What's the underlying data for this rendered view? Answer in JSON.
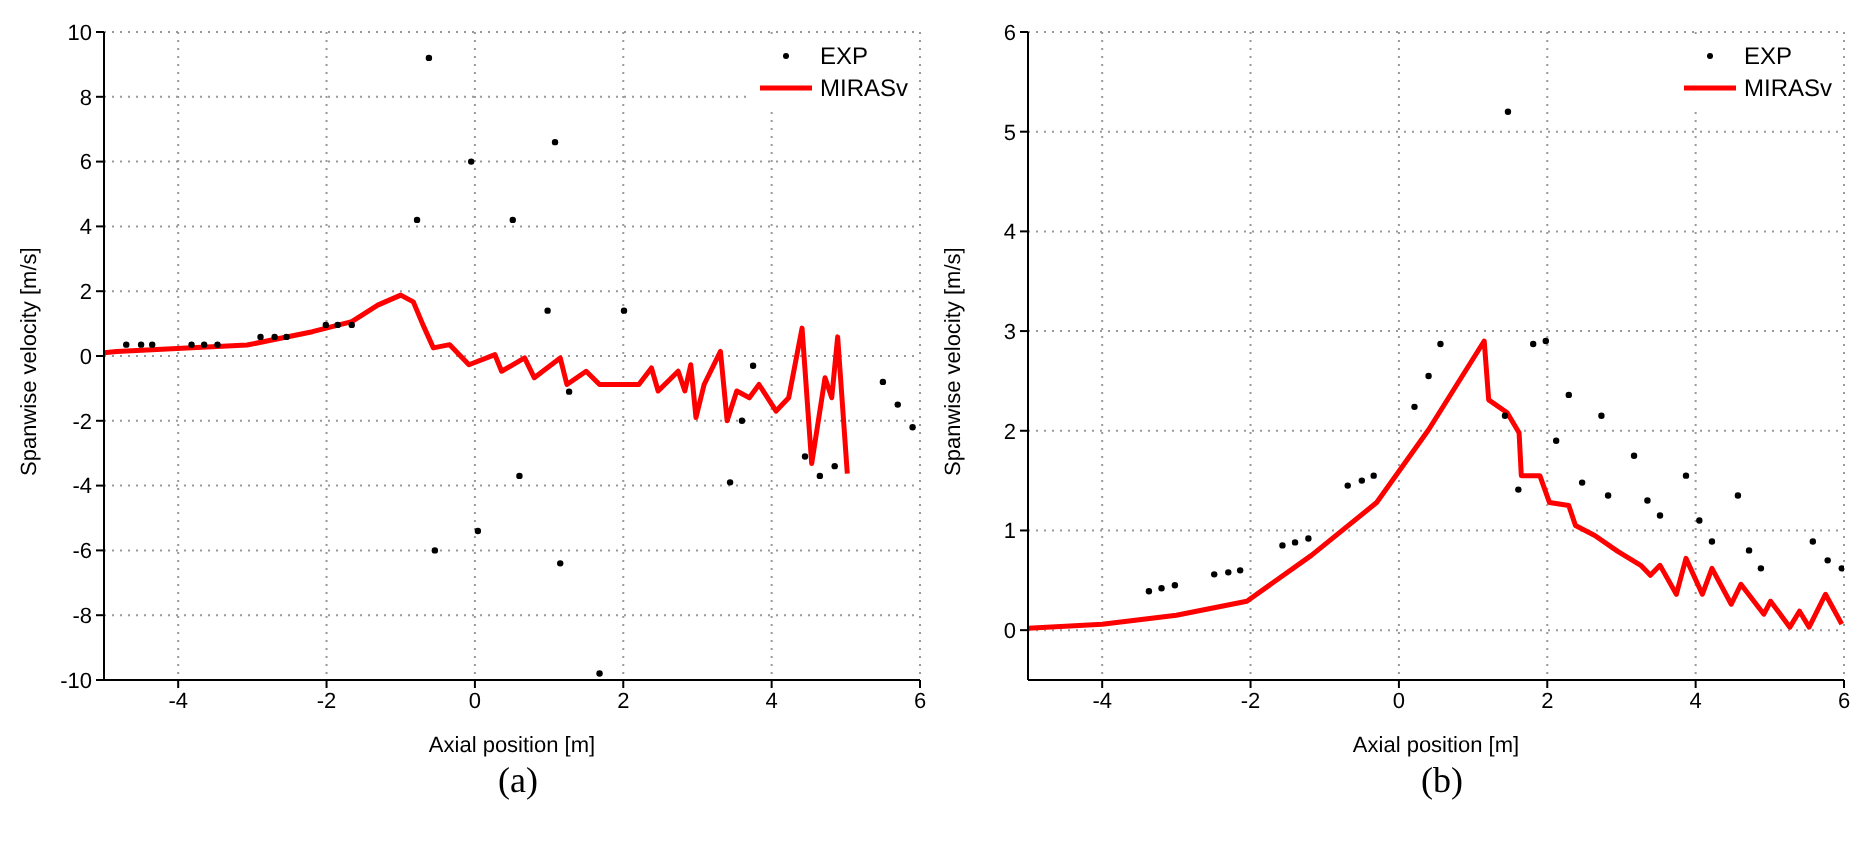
{
  "chart_data": [
    {
      "type": "line",
      "xlabel": "Axial position [m]",
      "ylabel": "Spanwise velocity [m/s]",
      "xlim": [
        -5,
        6
      ],
      "xticks": [
        -4,
        -2,
        0,
        2,
        4,
        6
      ],
      "ylim": [
        -10,
        10
      ],
      "yticks": [
        -10,
        -8,
        -6,
        -4,
        -2,
        0,
        2,
        4,
        6,
        8,
        10
      ],
      "grid": true,
      "legend": "top right",
      "line_style": "solid",
      "annotations": [
        "(a)"
      ],
      "series": [
        {
          "name": "EXP",
          "type": "scatter",
          "marker": "circle",
          "color": "#000000",
          "x": [
            -4.7,
            -4.5,
            -4.35,
            -3.82,
            -3.65,
            -3.47,
            -2.89,
            -2.7,
            -2.54,
            -2.01,
            -1.85,
            -1.66,
            -0.78,
            -0.62,
            -0.54,
            -0.05,
            0.04,
            0.51,
            0.6,
            0.98,
            1.08,
            1.15,
            1.27,
            1.68,
            2.01,
            3.44,
            3.6,
            3.75,
            4.45,
            4.65,
            4.85,
            5.5,
            5.7,
            5.9
          ],
          "values": [
            0.35,
            0.35,
            0.35,
            0.35,
            0.35,
            0.35,
            0.59,
            0.59,
            0.59,
            0.96,
            0.96,
            0.96,
            4.2,
            9.2,
            -6.0,
            6.0,
            -5.4,
            4.2,
            -3.7,
            1.4,
            6.6,
            -6.4,
            -1.1,
            -9.8,
            1.4,
            -3.9,
            -2.0,
            -0.3,
            -3.1,
            -3.7,
            -3.4,
            -0.8,
            -1.5,
            -2.2
          ]
        },
        {
          "name": "MIRASv",
          "type": "line",
          "marker": "none",
          "color": "#ff0000",
          "x": [
            -5,
            -4.83,
            -3.95,
            -3.07,
            -2.19,
            -1.66,
            -1.31,
            -1.0,
            -0.83,
            -0.7,
            -0.56,
            -0.34,
            -0.08,
            0.27,
            0.36,
            0.67,
            0.8,
            1.15,
            1.24,
            1.5,
            1.68,
            2.21,
            2.38,
            2.47,
            2.74,
            2.83,
            2.91,
            2.98,
            3.09,
            3.31,
            3.4,
            3.53,
            3.7,
            3.83,
            4.06,
            4.23,
            4.41,
            4.54,
            4.72,
            4.81,
            4.89,
            5.02
          ],
          "values": [
            0.1,
            0.14,
            0.24,
            0.34,
            0.75,
            1.06,
            1.57,
            1.88,
            1.67,
            0.96,
            0.25,
            0.35,
            -0.27,
            0.04,
            -0.47,
            -0.06,
            -0.67,
            -0.06,
            -0.88,
            -0.47,
            -0.88,
            -0.88,
            -0.37,
            -1.08,
            -0.47,
            -1.08,
            -0.27,
            -1.9,
            -0.88,
            0.14,
            -2.0,
            -1.08,
            -1.29,
            -0.88,
            -1.7,
            -1.29,
            0.86,
            -3.32,
            -0.67,
            -1.29,
            0.59,
            -3.63
          ]
        }
      ]
    },
    {
      "type": "line",
      "xlabel": "Axial position [m]",
      "ylabel": "Spanwise velocity [m/s]",
      "xlim": [
        -5,
        6
      ],
      "xticks": [
        -4,
        -2,
        0,
        2,
        4,
        6
      ],
      "ylim": [
        -0.5,
        6
      ],
      "yticks": [
        0,
        1,
        2,
        3,
        4,
        5,
        6
      ],
      "grid": true,
      "legend": "top right",
      "line_style": "solid",
      "annotations": [
        "(b)"
      ],
      "series": [
        {
          "name": "EXP",
          "type": "scatter",
          "marker": "circle",
          "color": "#000000",
          "x": [
            -3.37,
            -3.2,
            -3.02,
            -2.49,
            -2.3,
            -2.14,
            -1.57,
            -1.4,
            -1.22,
            -0.69,
            -0.5,
            -0.34,
            0.21,
            0.4,
            0.56,
            1.43,
            1.47,
            1.61,
            1.81,
            1.98,
            2.12,
            2.29,
            2.47,
            2.73,
            2.82,
            3.17,
            3.35,
            3.52,
            3.87,
            4.05,
            4.22,
            4.57,
            4.72,
            4.88,
            5.58,
            5.78,
            5.97
          ],
          "values": [
            0.39,
            0.42,
            0.45,
            0.56,
            0.58,
            0.6,
            0.85,
            0.88,
            0.92,
            1.45,
            1.5,
            1.55,
            2.24,
            2.55,
            2.87,
            2.15,
            5.2,
            1.41,
            2.87,
            2.9,
            1.9,
            2.36,
            1.48,
            2.15,
            1.35,
            1.75,
            1.3,
            1.15,
            1.55,
            1.1,
            0.89,
            1.35,
            0.8,
            0.62,
            0.89,
            0.7,
            0.62
          ]
        },
        {
          "name": "MIRASv",
          "type": "line",
          "marker": "none",
          "color": "#ff0000",
          "x": [
            -5,
            -4,
            -3,
            -2.05,
            -1.18,
            -0.3,
            0.4,
            1.15,
            1.21,
            1.46,
            1.62,
            1.65,
            1.9,
            2.03,
            2.29,
            2.38,
            2.64,
            2.95,
            3.26,
            3.39,
            3.52,
            3.74,
            3.87,
            4.09,
            4.22,
            4.48,
            4.61,
            4.92,
            5.01,
            5.27,
            5.4,
            5.53,
            5.75,
            5.97
          ],
          "values": [
            0.02,
            0.06,
            0.15,
            0.29,
            0.75,
            1.28,
            2.01,
            2.9,
            2.31,
            2.18,
            1.98,
            1.55,
            1.55,
            1.28,
            1.25,
            1.05,
            0.95,
            0.79,
            0.65,
            0.55,
            0.65,
            0.36,
            0.72,
            0.36,
            0.62,
            0.26,
            0.46,
            0.16,
            0.29,
            0.03,
            0.19,
            0.03,
            0.36,
            0.06
          ]
        }
      ]
    }
  ]
}
